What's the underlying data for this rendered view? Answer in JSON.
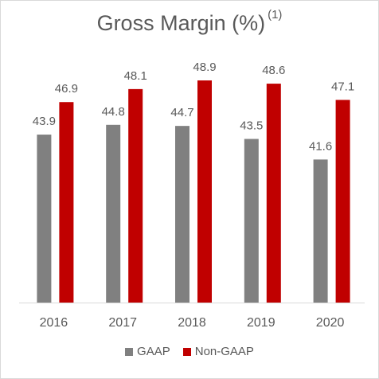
{
  "colors": {
    "gaap": "#808080",
    "non_gaap": "#c00000",
    "text": "#595959",
    "axis": "#d9d9d9"
  },
  "chart_data": {
    "type": "bar",
    "title": "Gross Margin (%)",
    "title_footnote": "(1)",
    "categories": [
      "2016",
      "2017",
      "2018",
      "2019",
      "2020"
    ],
    "series": [
      {
        "name": "GAAP",
        "values": [
          43.9,
          44.8,
          44.7,
          43.5,
          41.6
        ]
      },
      {
        "name": "Non-GAAP",
        "values": [
          46.9,
          48.1,
          48.9,
          48.6,
          47.1
        ]
      }
    ],
    "ylim": [
      28.4,
      48.9
    ],
    "grid": false,
    "legend_position": "bottom"
  }
}
